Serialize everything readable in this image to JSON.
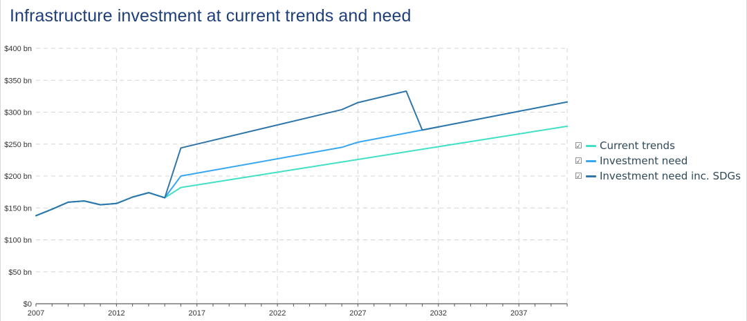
{
  "title": "Infrastructure investment at current trends and need",
  "legend": {
    "checkbox_glyph": "☑",
    "items": [
      {
        "label": "Current trends",
        "color": "#3fe0c5"
      },
      {
        "label": "Investment need",
        "color": "#37a6f0"
      },
      {
        "label": "Investment need inc. SDGs",
        "color": "#2f75a8"
      }
    ]
  },
  "chart_data": {
    "type": "line",
    "title": "Infrastructure investment at current trends and need",
    "xlabel": "",
    "ylabel": "",
    "xlim": [
      2007,
      2040
    ],
    "ylim": [
      0,
      400
    ],
    "x_ticks": [
      "2007",
      "2012",
      "2017",
      "2022",
      "2027",
      "2032",
      "2037"
    ],
    "x_tick_values": [
      2007,
      2012,
      2017,
      2022,
      2027,
      2032,
      2037
    ],
    "y_ticks": [
      "$0",
      "$50 bn",
      "$100 bn",
      "$150 bn",
      "$200 bn",
      "$250 bn",
      "$300 bn",
      "$350 bn",
      "$400 bn"
    ],
    "y_tick_values": [
      0,
      50,
      100,
      150,
      200,
      250,
      300,
      350,
      400
    ],
    "grid": true,
    "legend_position": "right",
    "series": [
      {
        "name": "Current trends",
        "color": "#3fe0c5",
        "points": [
          [
            2007,
            138
          ],
          [
            2008,
            148
          ],
          [
            2009,
            159
          ],
          [
            2010,
            161
          ],
          [
            2011,
            155
          ],
          [
            2012,
            157
          ],
          [
            2013,
            167
          ],
          [
            2014,
            174
          ],
          [
            2015,
            166
          ],
          [
            2016,
            182
          ],
          [
            2027,
            226
          ],
          [
            2040,
            278
          ]
        ]
      },
      {
        "name": "Investment need",
        "color": "#37a6f0",
        "points": [
          [
            2007,
            138
          ],
          [
            2008,
            148
          ],
          [
            2009,
            159
          ],
          [
            2010,
            161
          ],
          [
            2011,
            155
          ],
          [
            2012,
            157
          ],
          [
            2013,
            167
          ],
          [
            2014,
            174
          ],
          [
            2015,
            166
          ],
          [
            2016,
            200
          ],
          [
            2026,
            245
          ],
          [
            2027,
            253
          ],
          [
            2031,
            272
          ],
          [
            2040,
            316
          ]
        ]
      },
      {
        "name": "Investment need inc. SDGs",
        "color": "#2f75a8",
        "points": [
          [
            2007,
            138
          ],
          [
            2008,
            148
          ],
          [
            2009,
            159
          ],
          [
            2010,
            161
          ],
          [
            2011,
            155
          ],
          [
            2012,
            157
          ],
          [
            2013,
            167
          ],
          [
            2014,
            174
          ],
          [
            2015,
            166
          ],
          [
            2016,
            244
          ],
          [
            2026,
            304
          ],
          [
            2027,
            315
          ],
          [
            2030,
            333
          ],
          [
            2031,
            272
          ],
          [
            2040,
            316
          ]
        ]
      }
    ]
  }
}
